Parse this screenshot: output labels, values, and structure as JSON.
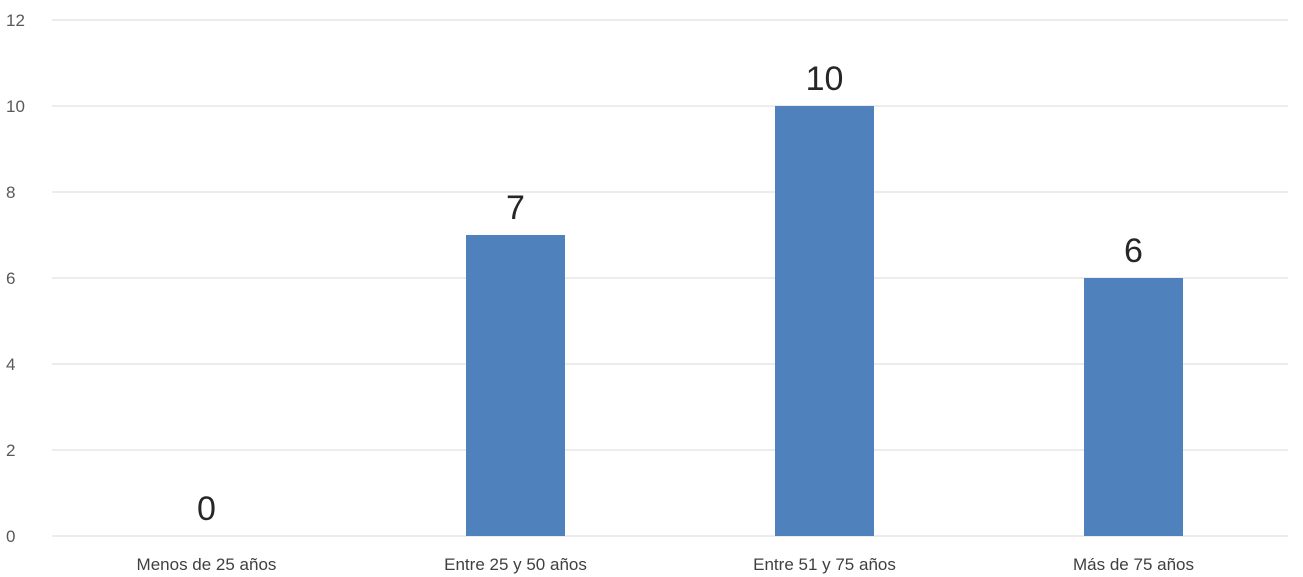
{
  "chart_data": {
    "type": "bar",
    "title": "",
    "xlabel": "",
    "ylabel": "",
    "categories": [
      "Menos de 25 años",
      "Entre 25 y 50 años",
      "Entre 51 y 75 años",
      "Más de 75 años"
    ],
    "values": [
      0,
      7,
      10,
      6
    ],
    "ylim": [
      0,
      12
    ],
    "yticks": [
      0,
      2,
      4,
      6,
      8,
      10,
      12
    ],
    "grid": true,
    "legend": "none",
    "bar_color": "#4f81bd",
    "data_labels": true
  }
}
